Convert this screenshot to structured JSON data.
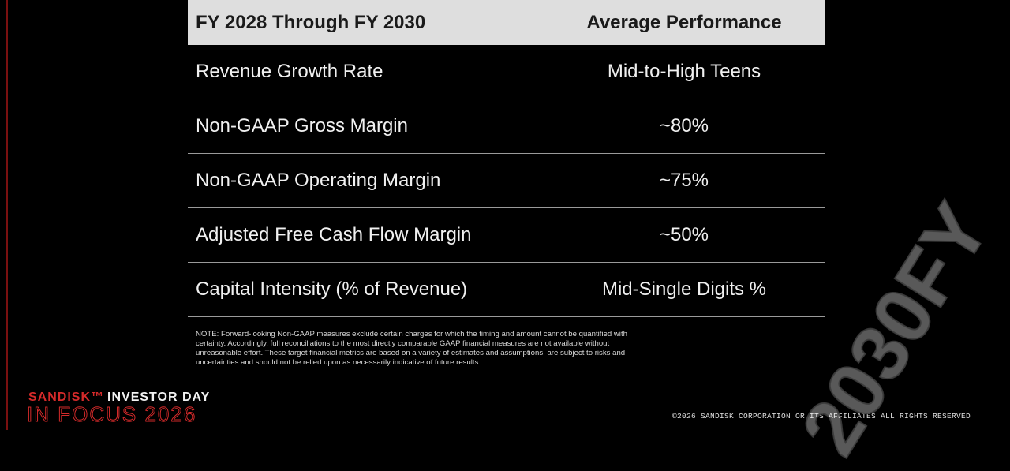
{
  "table": {
    "header": [
      "FY 2028 Through FY 2030",
      "Average Performance"
    ],
    "rows": [
      [
        "Revenue Growth Rate",
        "Mid-to-High Teens"
      ],
      [
        "Non-GAAP Gross Margin",
        "~80%"
      ],
      [
        "Non-GAAP Operating Margin",
        "~75%"
      ],
      [
        "Adjusted Free Cash Flow Margin",
        "~50%"
      ],
      [
        "Capital Intensity (% of Revenue)",
        "Mid-Single Digits %"
      ]
    ]
  },
  "note": "NOTE: Forward-looking Non-GAAP measures exclude certain charges for which the timing and amount cannot be quantified with certainty. Accordingly, full reconciliations to the most directly comparable GAAP financial measures are not available without unreasonable effort. These target financial metrics are based on a variety of estimates and assumptions, are subject to risks and uncertainties and should not be relied upon as necessarily indicative of future results.",
  "footer": {
    "brand": "SANDISK™",
    "event": "INVESTOR DAY",
    "tagline": "IN FOCUS 2026",
    "copyright": "©2026 SANDISK CORPORATION OR ITS AFFILIATES ALL RIGHTS RESERVED"
  },
  "watermark": "2030FY"
}
